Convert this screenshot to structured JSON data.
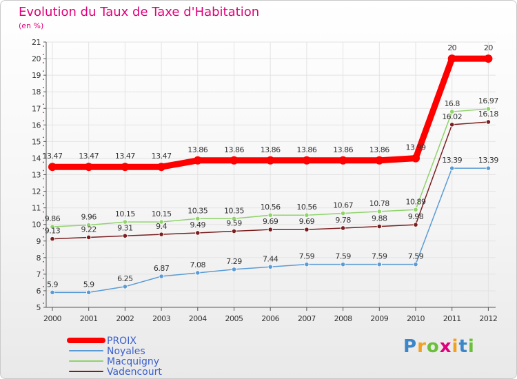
{
  "title": "Evolution du Taux de Taxe d'Habitation",
  "subtitle": "(en %)",
  "logo": {
    "letters": [
      "P",
      "r",
      "o",
      "x",
      "i",
      "t",
      "i"
    ],
    "colors": [
      "#3a86c8",
      "#f2a11f",
      "#6bbf3a",
      "#e0007a",
      "#f2a11f",
      "#3a86c8",
      "#6bbf3a"
    ]
  },
  "chart_data": {
    "type": "line",
    "x": [
      "2000",
      "2001",
      "2002",
      "2003",
      "2004",
      "2005",
      "2006",
      "2007",
      "2008",
      "2009",
      "2010",
      "2011",
      "2012"
    ],
    "ylim": [
      5,
      21
    ],
    "yticks": [
      "5",
      "6",
      "7",
      "8",
      "9",
      "10",
      "11",
      "12",
      "13",
      "14",
      "15",
      "16",
      "17",
      "18",
      "19",
      "20",
      "21"
    ],
    "grid": true,
    "legend_position": "bottom-left",
    "series": [
      {
        "name": "PROIX",
        "color": "#ff0000",
        "values": [
          13.47,
          13.47,
          13.47,
          13.47,
          13.86,
          13.86,
          13.86,
          13.86,
          13.86,
          13.86,
          13.99,
          20,
          20
        ],
        "labels": [
          "13.47",
          "13.47",
          "13.47",
          "13.47",
          "13.86",
          "13.86",
          "13.86",
          "13.86",
          "13.86",
          "13.86",
          "13.99",
          "20",
          "20"
        ]
      },
      {
        "name": "Noyales",
        "color": "#5b9bd5",
        "values": [
          5.9,
          5.9,
          6.25,
          6.87,
          7.08,
          7.29,
          7.44,
          7.59,
          7.59,
          7.59,
          7.59,
          13.39,
          13.39
        ],
        "labels": [
          "5.9",
          "5.9",
          "6.25",
          "6.87",
          "7.08",
          "7.29",
          "7.44",
          "7.59",
          "7.59",
          "7.59",
          "7.59",
          "13.39",
          "13.39"
        ]
      },
      {
        "name": "Macquigny",
        "color": "#8fd36b",
        "values": [
          9.86,
          9.96,
          10.15,
          10.15,
          10.35,
          10.35,
          10.56,
          10.56,
          10.67,
          10.78,
          10.89,
          16.8,
          16.97
        ],
        "labels": [
          "9.86",
          "9.96",
          "10.15",
          "10.15",
          "10.35",
          "10.35",
          "10.56",
          "10.56",
          "10.67",
          "10.78",
          "10.89",
          "16.8",
          "16.97"
        ]
      },
      {
        "name": "Vadencourt",
        "color": "#7a1f1f",
        "values": [
          9.13,
          9.22,
          9.31,
          9.4,
          9.49,
          9.59,
          9.69,
          9.69,
          9.78,
          9.88,
          9.98,
          16.02,
          16.18
        ],
        "labels": [
          "9.13",
          "9.22",
          "9.31",
          "9.4",
          "9.49",
          "9.59",
          "9.69",
          "9.69",
          "9.78",
          "9.88",
          "9.98",
          "16.02",
          "16.18"
        ]
      }
    ]
  }
}
